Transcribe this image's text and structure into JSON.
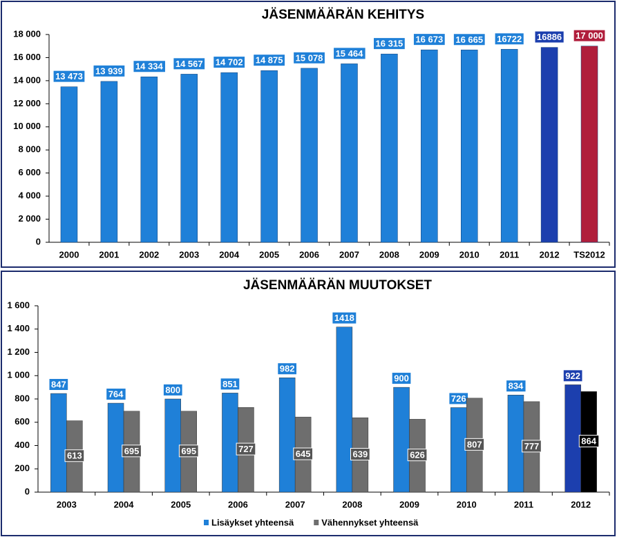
{
  "chart_data": [
    {
      "type": "bar",
      "title": "JÄSENMÄÄRÄN KEHITYS",
      "categories": [
        "2000",
        "2001",
        "2002",
        "2003",
        "2004",
        "2005",
        "2006",
        "2007",
        "2008",
        "2009",
        "2010",
        "2011",
        "2012",
        "TS2012"
      ],
      "values": [
        13473,
        13939,
        14334,
        14567,
        14702,
        14875,
        15078,
        15464,
        16315,
        16673,
        16665,
        16722,
        16886,
        17000
      ],
      "value_labels": [
        "13 473",
        "13 939",
        "14 334",
        "14 567",
        "14 702",
        "14 875",
        "15 078",
        "15 464",
        "16 315",
        "16 673",
        "16 665",
        "16722",
        "16886",
        "17 000"
      ],
      "colors": [
        "#1f80d8",
        "#1f80d8",
        "#1f80d8",
        "#1f80d8",
        "#1f80d8",
        "#1f80d8",
        "#1f80d8",
        "#1f80d8",
        "#1f80d8",
        "#1f80d8",
        "#1f80d8",
        "#1f80d8",
        "#1c3fae",
        "#b01e3c"
      ],
      "ylim": [
        0,
        18000
      ],
      "yticks": [
        0,
        {
          "value": 2000,
          "label": "2 000"
        },
        {
          "value": 4000,
          "label": "4 000"
        },
        {
          "value": 6000,
          "label": "6 000"
        },
        {
          "value": 8000,
          "label": "8 000"
        },
        {
          "value": 10000,
          "label": "10 000"
        },
        {
          "value": 12000,
          "label": "12 000"
        },
        {
          "value": 14000,
          "label": "14 000"
        },
        {
          "value": 16000,
          "label": "16 000"
        },
        {
          "value": 18000,
          "label": "18 000"
        }
      ]
    },
    {
      "type": "bar",
      "title": "JÄSENMÄÄRÄN MUUTOKSET",
      "categories": [
        "2003",
        "2004",
        "2005",
        "2006",
        "2007",
        "2008",
        "2009",
        "2010",
        "2011",
        "2012"
      ],
      "series": [
        {
          "name": "Lisäykset yhteensä",
          "color": "#1f80d8",
          "colors": [
            "#1f80d8",
            "#1f80d8",
            "#1f80d8",
            "#1f80d8",
            "#1f80d8",
            "#1f80d8",
            "#1f80d8",
            "#1f80d8",
            "#1f80d8",
            "#1c3fae"
          ],
          "values": [
            847,
            764,
            800,
            851,
            982,
            1418,
            900,
            726,
            834,
            922
          ]
        },
        {
          "name": "Vähennykset yhteensä",
          "color": "#6e6e6e",
          "colors": [
            "#6e6e6e",
            "#6e6e6e",
            "#6e6e6e",
            "#6e6e6e",
            "#6e6e6e",
            "#6e6e6e",
            "#6e6e6e",
            "#6e6e6e",
            "#6e6e6e",
            "#000000"
          ],
          "values": [
            613,
            695,
            695,
            727,
            645,
            639,
            626,
            807,
            777,
            864
          ]
        }
      ],
      "ylim": [
        0,
        1600
      ],
      "yticks": [
        0,
        200,
        400,
        600,
        800,
        {
          "value": 1000,
          "label": "1 000"
        },
        {
          "value": 1200,
          "label": "1 200"
        },
        {
          "value": 1400,
          "label": "1 400"
        },
        {
          "value": 1600,
          "label": "1 600"
        }
      ],
      "legend": "bottom"
    }
  ]
}
